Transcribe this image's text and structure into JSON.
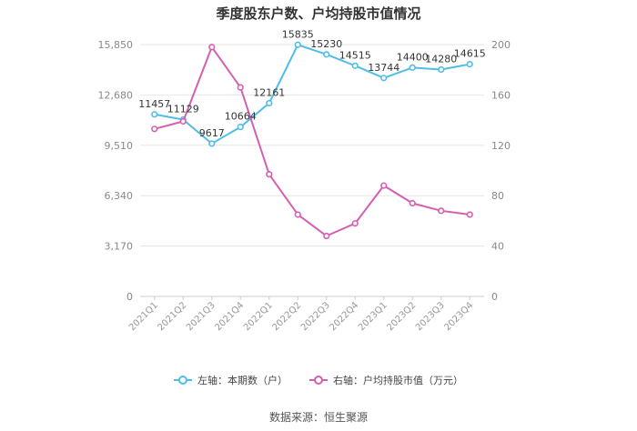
{
  "title": "季度股东户数、户均持股市值情况",
  "source": "数据来源：恒生聚源",
  "chart_data": {
    "type": "line",
    "categories": [
      "2021Q1",
      "2021Q2",
      "2021Q3",
      "2021Q4",
      "2022Q1",
      "2022Q2",
      "2022Q3",
      "2022Q4",
      "2023Q1",
      "2023Q2",
      "2023Q3",
      "2023Q4"
    ],
    "series": [
      {
        "name": "左轴：本期数（户）",
        "axis": "left",
        "color": "#4fbde8",
        "values": [
          11457,
          11129,
          9617,
          10664,
          12161,
          15835,
          15230,
          14515,
          13744,
          14400,
          14280,
          14615
        ],
        "labels": [
          "11457",
          "11129",
          "9617",
          "10664",
          "12161",
          "15835",
          "15230",
          "14515",
          "13744",
          "14400",
          "14280",
          "14615"
        ]
      },
      {
        "name": "右轴：户均持股市值（万元）",
        "axis": "right",
        "color": "#d45fb0",
        "values": [
          133,
          139,
          198,
          166,
          97,
          65,
          48,
          58,
          88,
          74,
          68,
          65
        ]
      }
    ],
    "left_axis": {
      "ylim": [
        0,
        15850
      ],
      "ticks": [
        "0",
        "3,170",
        "6,340",
        "9,510",
        "12,680",
        "15,850"
      ]
    },
    "right_axis": {
      "ylim": [
        0,
        200
      ],
      "ticks": [
        "0",
        "40",
        "80",
        "120",
        "160",
        "200"
      ]
    },
    "grid": true,
    "legend_position": "bottom"
  }
}
